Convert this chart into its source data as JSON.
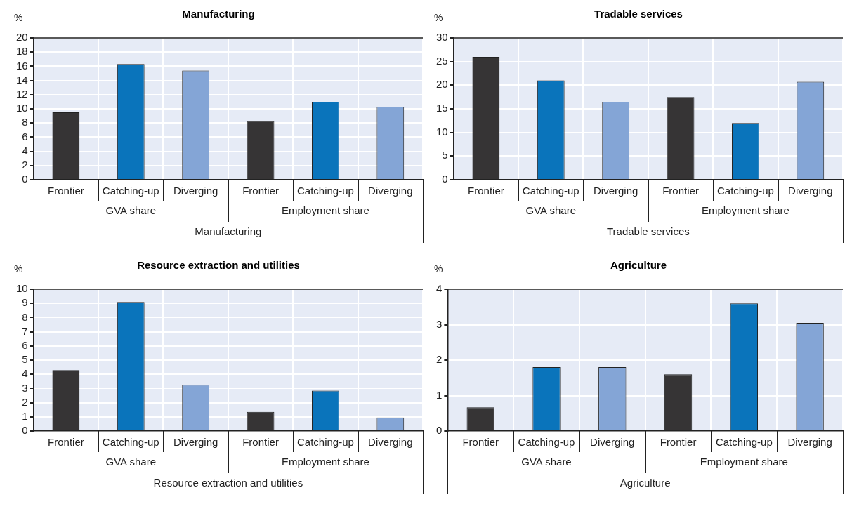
{
  "chart_data": [
    {
      "type": "bar",
      "title": "Manufacturing",
      "ylabel": "%",
      "xlabel": "Manufacturing",
      "categories": [
        "Frontier",
        "Catching-up",
        "Diverging",
        "Frontier",
        "Catching-up",
        "Diverging"
      ],
      "values": [
        9.5,
        16.3,
        15.4,
        8.3,
        11.0,
        10.3
      ],
      "colors": [
        "#363435",
        "#0a74bb",
        "#84a5d6",
        "#363435",
        "#0a74bb",
        "#84a5d6"
      ],
      "ylim": [
        0,
        20
      ],
      "yticks": [
        0,
        2,
        4,
        6,
        8,
        10,
        12,
        14,
        16,
        18,
        20
      ],
      "grid": true,
      "annotations": [
        "GVA share",
        "Employment share"
      ]
    },
    {
      "type": "bar",
      "title": "Tradable services",
      "ylabel": "%",
      "xlabel": "Tradable services",
      "categories": [
        "Frontier",
        "Catching-up",
        "Diverging",
        "Frontier",
        "Catching-up",
        "Diverging"
      ],
      "values": [
        26.0,
        21.0,
        16.5,
        17.5,
        12.0,
        20.7
      ],
      "colors": [
        "#363435",
        "#0a74bb",
        "#84a5d6",
        "#363435",
        "#0a74bb",
        "#84a5d6"
      ],
      "ylim": [
        0,
        30
      ],
      "yticks": [
        0,
        5,
        10,
        15,
        20,
        25,
        30
      ],
      "grid": true,
      "annotations": [
        "GVA share",
        "Employment share"
      ]
    },
    {
      "type": "bar",
      "title": "Resource extraction and utilities",
      "ylabel": "%",
      "xlabel": "Resource extraction and utilities",
      "categories": [
        "Frontier",
        "Catching-up",
        "Diverging",
        "Frontier",
        "Catching-up",
        "Diverging"
      ],
      "values": [
        4.3,
        9.1,
        3.25,
        1.35,
        2.85,
        0.95
      ],
      "colors": [
        "#363435",
        "#0a74bb",
        "#84a5d6",
        "#363435",
        "#0a74bb",
        "#84a5d6"
      ],
      "ylim": [
        0,
        10
      ],
      "yticks": [
        0,
        1,
        2,
        3,
        4,
        5,
        6,
        7,
        8,
        9,
        10
      ],
      "grid": true,
      "annotations": [
        "GVA share",
        "Employment share"
      ]
    },
    {
      "type": "bar",
      "title": "Agriculture",
      "ylabel": "%",
      "xlabel": "Agriculture",
      "categories": [
        "Frontier",
        "Catching-up",
        "Diverging",
        "Frontier",
        "Catching-up",
        "Diverging"
      ],
      "values": [
        0.67,
        1.8,
        1.8,
        1.6,
        3.6,
        3.05
      ],
      "colors": [
        "#363435",
        "#0a74bb",
        "#84a5d6",
        "#363435",
        "#0a74bb",
        "#84a5d6"
      ],
      "ylim": [
        0,
        4
      ],
      "yticks": [
        0,
        1,
        2,
        3,
        4
      ],
      "grid": true,
      "annotations": [
        "GVA share",
        "Employment share"
      ]
    }
  ]
}
